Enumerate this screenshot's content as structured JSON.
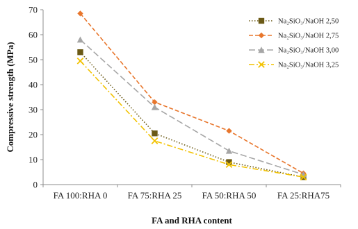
{
  "chart_data": {
    "type": "line",
    "categories": [
      "FA 100:RHA 0",
      "FA 75:RHA 25",
      "FA 50:RHA 50",
      "FA 25:RHA75"
    ],
    "xlabel": "FA and RHA content",
    "ylabel": "Compressive strength (MPa)",
    "ylim": [
      0,
      70
    ],
    "yticks": [
      0,
      10,
      20,
      30,
      40,
      50,
      60,
      70
    ],
    "grid": false,
    "legend_position": "top-right",
    "series": [
      {
        "name": "Na₂SiO₃/NaOH 2,50",
        "values": [
          53,
          20.5,
          9,
          3
        ],
        "color": "#6b5a16",
        "dash": "dotted",
        "marker": "square"
      },
      {
        "name": "Na₂SiO₃/NaOH 2,75",
        "values": [
          68.5,
          33,
          21.5,
          4.5
        ],
        "color": "#e8762c",
        "dash": "dashed",
        "marker": "diamond"
      },
      {
        "name": "Na₂SiO₃/NaOH 3,00",
        "values": [
          58,
          31,
          13.5,
          4
        ],
        "color": "#a6a6a6",
        "dash": "longdash",
        "marker": "triangle"
      },
      {
        "name": "Na₂SiO₃/NaOH 3,25",
        "values": [
          49.5,
          17.5,
          8,
          3
        ],
        "color": "#f2c200",
        "dash": "dashdot",
        "marker": "x"
      }
    ]
  }
}
